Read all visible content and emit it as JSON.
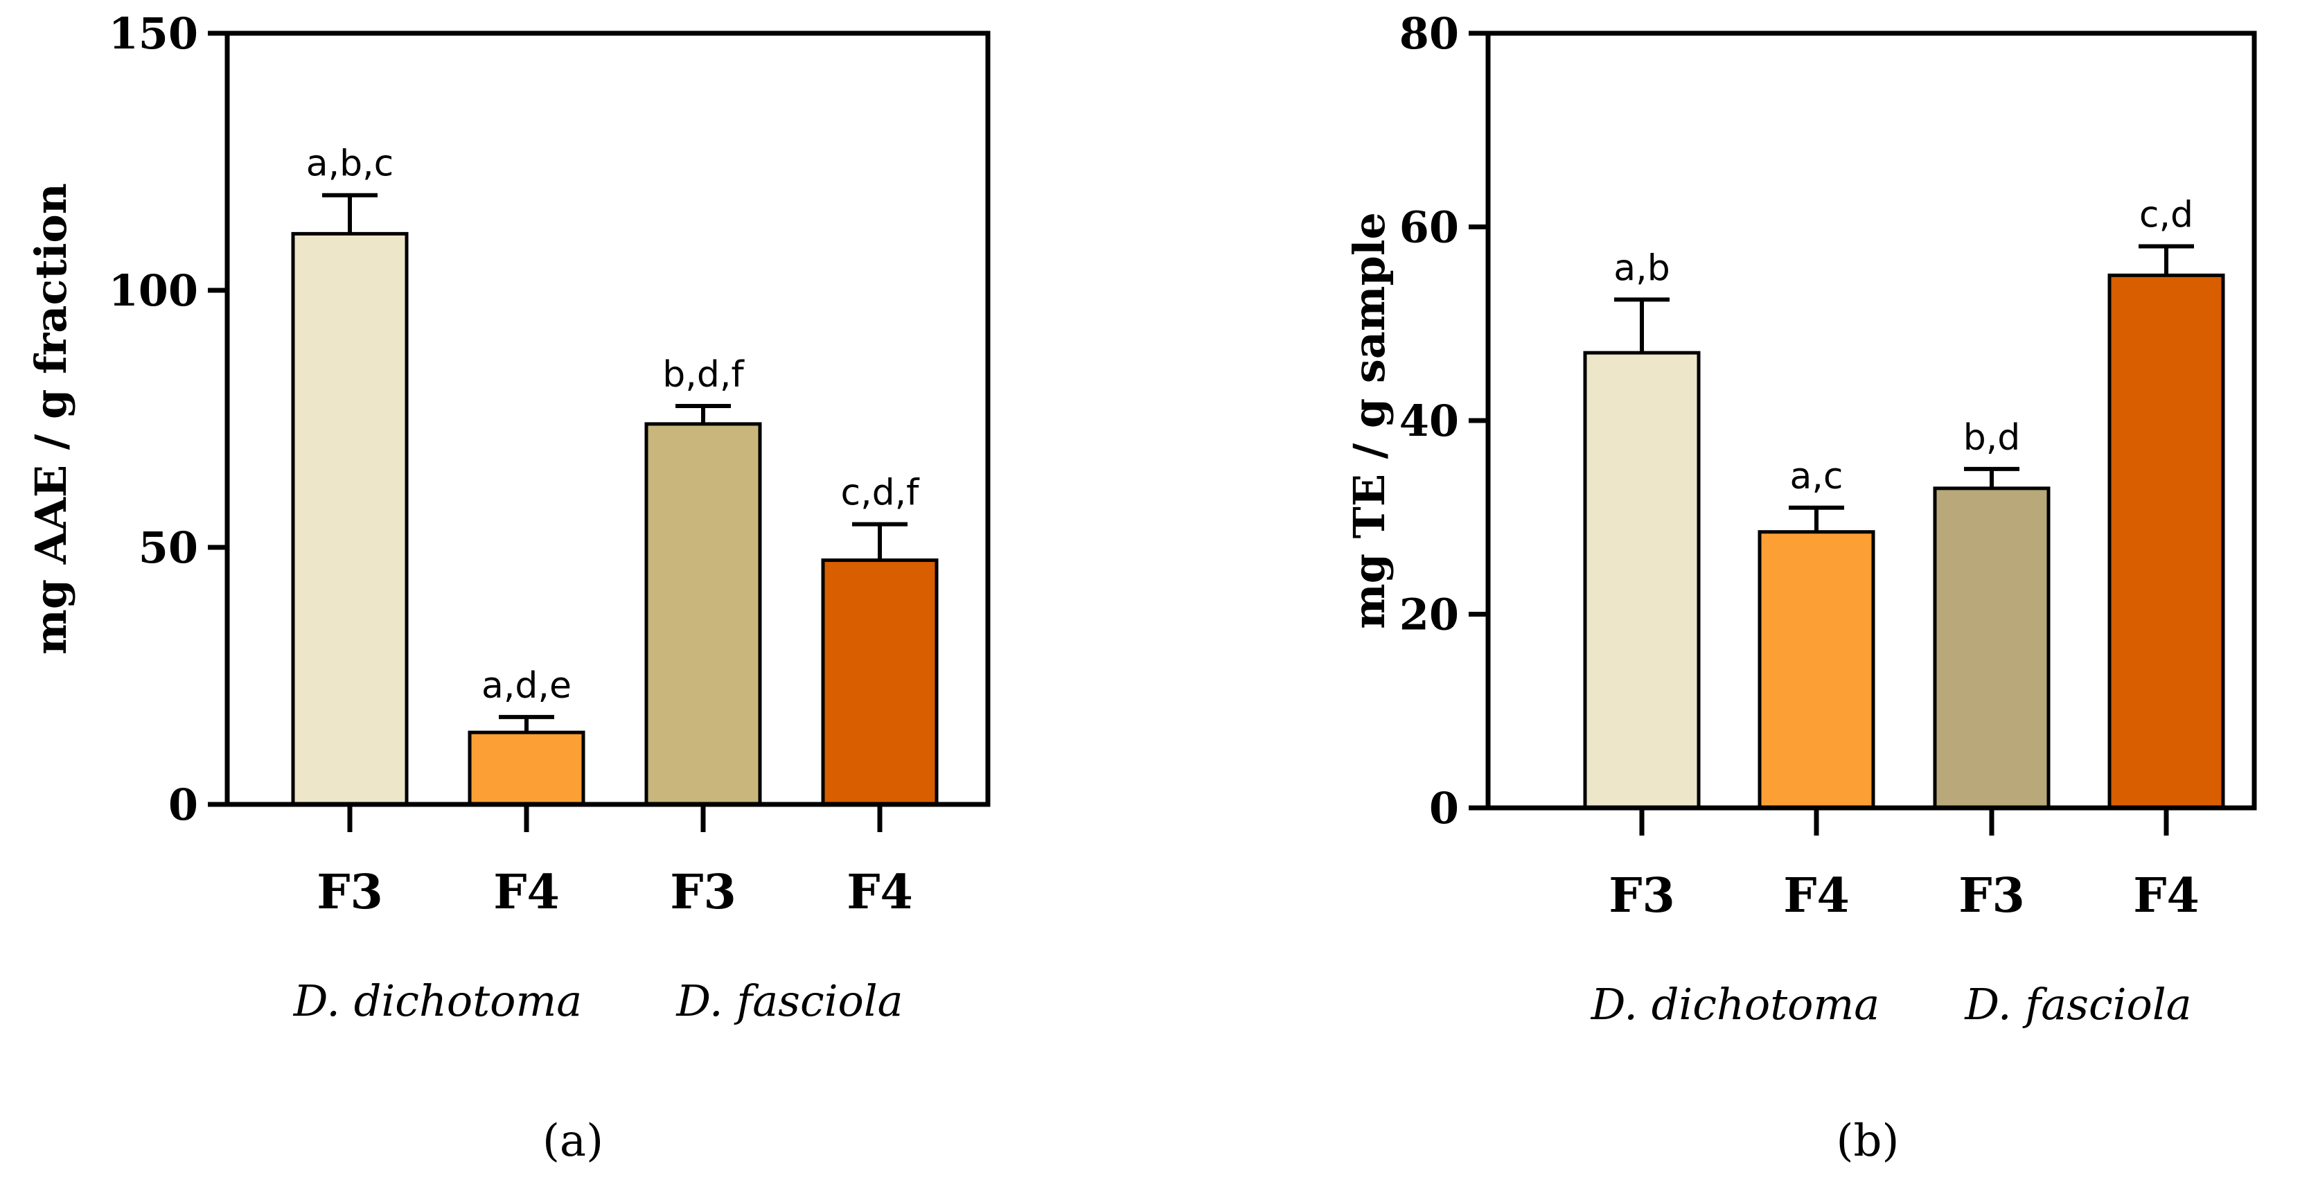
{
  "chart_data": [
    {
      "type": "bar",
      "panel": "a",
      "ylabel": "mg AAE / g fraction",
      "ylim": [
        0,
        150
      ],
      "yticks": [
        0,
        50,
        100,
        150
      ],
      "categories": [
        "F3",
        "F4",
        "F3",
        "F4"
      ],
      "groups": [
        {
          "label": "D. dichotoma",
          "members": [
            0,
            1
          ]
        },
        {
          "label": "D. fasciola",
          "members": [
            2,
            3
          ]
        }
      ],
      "values": [
        111,
        14,
        74,
        47.5
      ],
      "errors": [
        7.5,
        3,
        3.5,
        7
      ],
      "significance": [
        "a,b,c",
        "a,d,e",
        "b,d,f",
        "c,d,f"
      ],
      "colors": [
        "#ede6c8",
        "#fca035",
        "#c8b67c",
        "#d85e00"
      ]
    },
    {
      "type": "bar",
      "panel": "b",
      "ylabel": "mg TE / g sample",
      "ylim": [
        0,
        80
      ],
      "yticks": [
        0,
        20,
        40,
        60,
        80
      ],
      "categories": [
        "F3",
        "F4",
        "F3",
        "F4"
      ],
      "groups": [
        {
          "label": "D. dichotoma",
          "members": [
            0,
            1
          ]
        },
        {
          "label": "D. fasciola",
          "members": [
            2,
            3
          ]
        }
      ],
      "values": [
        47,
        28.5,
        33,
        55
      ],
      "errors": [
        5.5,
        2.5,
        2,
        3
      ],
      "significance": [
        "a,b",
        "a,c",
        "b,d",
        "c,d"
      ],
      "colors": [
        "#ede6c8",
        "#fca035",
        "#b8a87a",
        "#d85e00"
      ]
    }
  ],
  "panel_labels": [
    "(a)",
    "(b)"
  ]
}
